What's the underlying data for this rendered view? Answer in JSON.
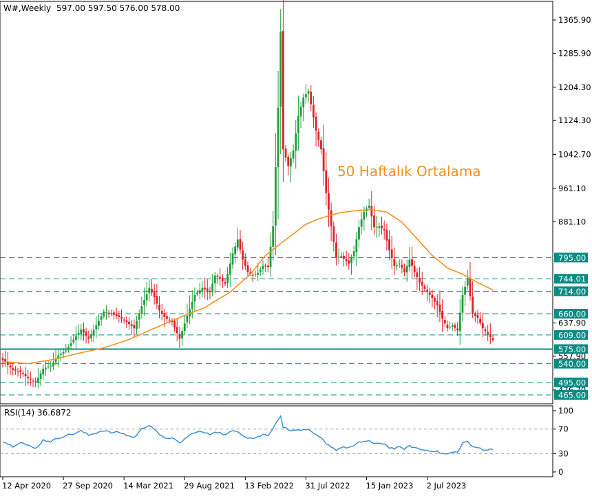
{
  "chart_data": {
    "type": "candlestick",
    "header": {
      "symbol": "W#,Weekly",
      "ohlc": "597.00 597.50 576.00 578.00"
    },
    "price_axis": {
      "ylim": [
        452,
        1395
      ],
      "ticks": [
        "1365.90",
        "1285.90",
        "1204.30",
        "1124.30",
        "1042.70",
        "961.10",
        "881.10",
        "637.90",
        "557.90",
        "476.70"
      ]
    },
    "levels": [
      {
        "value": 795.0,
        "label": "795.00",
        "style": "dashed"
      },
      {
        "value": 744.01,
        "label": "744.01",
        "style": "dashed"
      },
      {
        "value": 714.0,
        "label": "714.00",
        "style": "dashed"
      },
      {
        "value": 660.0,
        "label": "660.00",
        "style": "dashed"
      },
      {
        "value": 609.0,
        "label": "609.00",
        "style": "dashed"
      },
      {
        "value": 575.0,
        "label": "575.00",
        "style": "solid"
      },
      {
        "value": 540.0,
        "label": "540.00",
        "style": "dashed"
      },
      {
        "value": 495.0,
        "label": "495.00",
        "style": "dashed"
      },
      {
        "value": 465.0,
        "label": "465.00",
        "style": "dashed"
      }
    ],
    "annotation": "50 Haftalık Ortalama",
    "x_labels": [
      "12 Apr 2020",
      "27 Sep 2020",
      "14 Mar 2021",
      "29 Aug 2021",
      "13 Feb 2022",
      "31 Jul 2022",
      "15 Jan 2023",
      "2 Jul 2023"
    ],
    "price_keys": [
      [
        0,
        548
      ],
      [
        4,
        525
      ],
      [
        7,
        520
      ],
      [
        10,
        505
      ],
      [
        13,
        495
      ],
      [
        16,
        528
      ],
      [
        19,
        535
      ],
      [
        22,
        560
      ],
      [
        25,
        572
      ],
      [
        28,
        598
      ],
      [
        31,
        622
      ],
      [
        34,
        600
      ],
      [
        37,
        632
      ],
      [
        40,
        665
      ],
      [
        43,
        660
      ],
      [
        46,
        652
      ],
      [
        49,
        640
      ],
      [
        52,
        625
      ],
      [
        55,
        678
      ],
      [
        58,
        722
      ],
      [
        60,
        700
      ],
      [
        62,
        668
      ],
      [
        64,
        652
      ],
      [
        67,
        640
      ],
      [
        70,
        600
      ],
      [
        73,
        655
      ],
      [
        76,
        705
      ],
      [
        79,
        722
      ],
      [
        82,
        712
      ],
      [
        84,
        752
      ],
      [
        86,
        745
      ],
      [
        88,
        732
      ],
      [
        91,
        805
      ],
      [
        93,
        838
      ],
      [
        95,
        790
      ],
      [
        97,
        760
      ],
      [
        99,
        752
      ],
      [
        101,
        758
      ],
      [
        103,
        775
      ],
      [
        105,
        772
      ],
      [
        107,
        870
      ],
      [
        109,
        1155
      ],
      [
        110,
        1338
      ],
      [
        111,
        1055
      ],
      [
        113,
        1015
      ],
      [
        115,
        1052
      ],
      [
        117,
        1135
      ],
      [
        119,
        1180
      ],
      [
        121,
        1195
      ],
      [
        124,
        1100
      ],
      [
        126,
        1055
      ],
      [
        128,
        950
      ],
      [
        130,
        870
      ],
      [
        132,
        795
      ],
      [
        134,
        798
      ],
      [
        137,
        780
      ],
      [
        139,
        810
      ],
      [
        141,
        868
      ],
      [
        143,
        905
      ],
      [
        145,
        920
      ],
      [
        147,
        868
      ],
      [
        149,
        870
      ],
      [
        151,
        860
      ],
      [
        153,
        812
      ],
      [
        155,
        775
      ],
      [
        157,
        780
      ],
      [
        159,
        760
      ],
      [
        161,
        790
      ],
      [
        163,
        760
      ],
      [
        165,
        735
      ],
      [
        168,
        712
      ],
      [
        170,
        698
      ],
      [
        172,
        680
      ],
      [
        174,
        648
      ],
      [
        176,
        625
      ],
      [
        178,
        632
      ],
      [
        180,
        620
      ],
      [
        182,
        705
      ],
      [
        184,
        745
      ],
      [
        186,
        660
      ],
      [
        188,
        650
      ],
      [
        190,
        625
      ],
      [
        192,
        611
      ],
      [
        194,
        597
      ]
    ],
    "ma50_keys": [
      [
        0,
        545
      ],
      [
        10,
        540
      ],
      [
        20,
        550
      ],
      [
        30,
        565
      ],
      [
        40,
        578
      ],
      [
        50,
        598
      ],
      [
        60,
        625
      ],
      [
        70,
        651
      ],
      [
        80,
        675
      ],
      [
        90,
        712
      ],
      [
        98,
        755
      ],
      [
        104,
        800
      ],
      [
        112,
        838
      ],
      [
        120,
        875
      ],
      [
        126,
        890
      ],
      [
        133,
        902
      ],
      [
        140,
        908
      ],
      [
        146,
        910
      ],
      [
        152,
        904
      ],
      [
        158,
        880
      ],
      [
        164,
        840
      ],
      [
        170,
        800
      ],
      [
        176,
        770
      ],
      [
        182,
        755
      ],
      [
        188,
        735
      ],
      [
        194,
        717
      ]
    ],
    "rsi": {
      "title": "RSI(14) 36.6872",
      "ylim": [
        0,
        100
      ],
      "ticks": [
        "100",
        "70",
        "30",
        "0"
      ],
      "levels": [
        70,
        30
      ],
      "keys": [
        [
          0,
          50
        ],
        [
          4,
          42
        ],
        [
          7,
          49
        ],
        [
          10,
          43
        ],
        [
          13,
          38
        ],
        [
          16,
          52
        ],
        [
          19,
          50
        ],
        [
          22,
          55
        ],
        [
          25,
          60
        ],
        [
          28,
          62
        ],
        [
          31,
          67
        ],
        [
          34,
          60
        ],
        [
          37,
          64
        ],
        [
          40,
          68
        ],
        [
          43,
          64
        ],
        [
          46,
          65
        ],
        [
          49,
          60
        ],
        [
          52,
          56
        ],
        [
          55,
          70
        ],
        [
          58,
          77
        ],
        [
          60,
          70
        ],
        [
          62,
          60
        ],
        [
          64,
          56
        ],
        [
          67,
          55
        ],
        [
          70,
          47
        ],
        [
          73,
          57
        ],
        [
          76,
          65
        ],
        [
          79,
          65
        ],
        [
          82,
          61
        ],
        [
          84,
          66
        ],
        [
          86,
          64
        ],
        [
          88,
          60
        ],
        [
          91,
          67
        ],
        [
          93,
          67
        ],
        [
          95,
          60
        ],
        [
          97,
          56
        ],
        [
          99,
          55
        ],
        [
          101,
          57
        ],
        [
          103,
          61
        ],
        [
          105,
          60
        ],
        [
          107,
          72
        ],
        [
          109,
          86
        ],
        [
          110,
          90
        ],
        [
          111,
          73
        ],
        [
          113,
          70
        ],
        [
          115,
          67
        ],
        [
          117,
          69
        ],
        [
          119,
          68
        ],
        [
          121,
          68
        ],
        [
          124,
          60
        ],
        [
          126,
          55
        ],
        [
          128,
          47
        ],
        [
          130,
          41
        ],
        [
          132,
          36
        ],
        [
          134,
          40
        ],
        [
          137,
          40
        ],
        [
          139,
          42
        ],
        [
          141,
          48
        ],
        [
          143,
          50
        ],
        [
          145,
          51
        ],
        [
          147,
          45
        ],
        [
          149,
          47
        ],
        [
          151,
          46
        ],
        [
          153,
          40
        ],
        [
          155,
          38
        ],
        [
          157,
          40
        ],
        [
          159,
          38
        ],
        [
          161,
          42
        ],
        [
          163,
          40
        ],
        [
          165,
          37
        ],
        [
          168,
          35
        ],
        [
          170,
          35
        ],
        [
          172,
          33
        ],
        [
          174,
          30
        ],
        [
          176,
          29
        ],
        [
          178,
          32
        ],
        [
          180,
          32
        ],
        [
          182,
          47
        ],
        [
          184,
          50
        ],
        [
          186,
          40
        ],
        [
          188,
          40
        ],
        [
          190,
          37
        ],
        [
          192,
          36
        ],
        [
          194,
          37
        ]
      ]
    },
    "colors": {
      "bull": "#1e9e3a",
      "bear": "#e01e26",
      "ma50": "#f5901e",
      "rsi": "#3c8fd2",
      "level": "#0c8c84"
    }
  }
}
